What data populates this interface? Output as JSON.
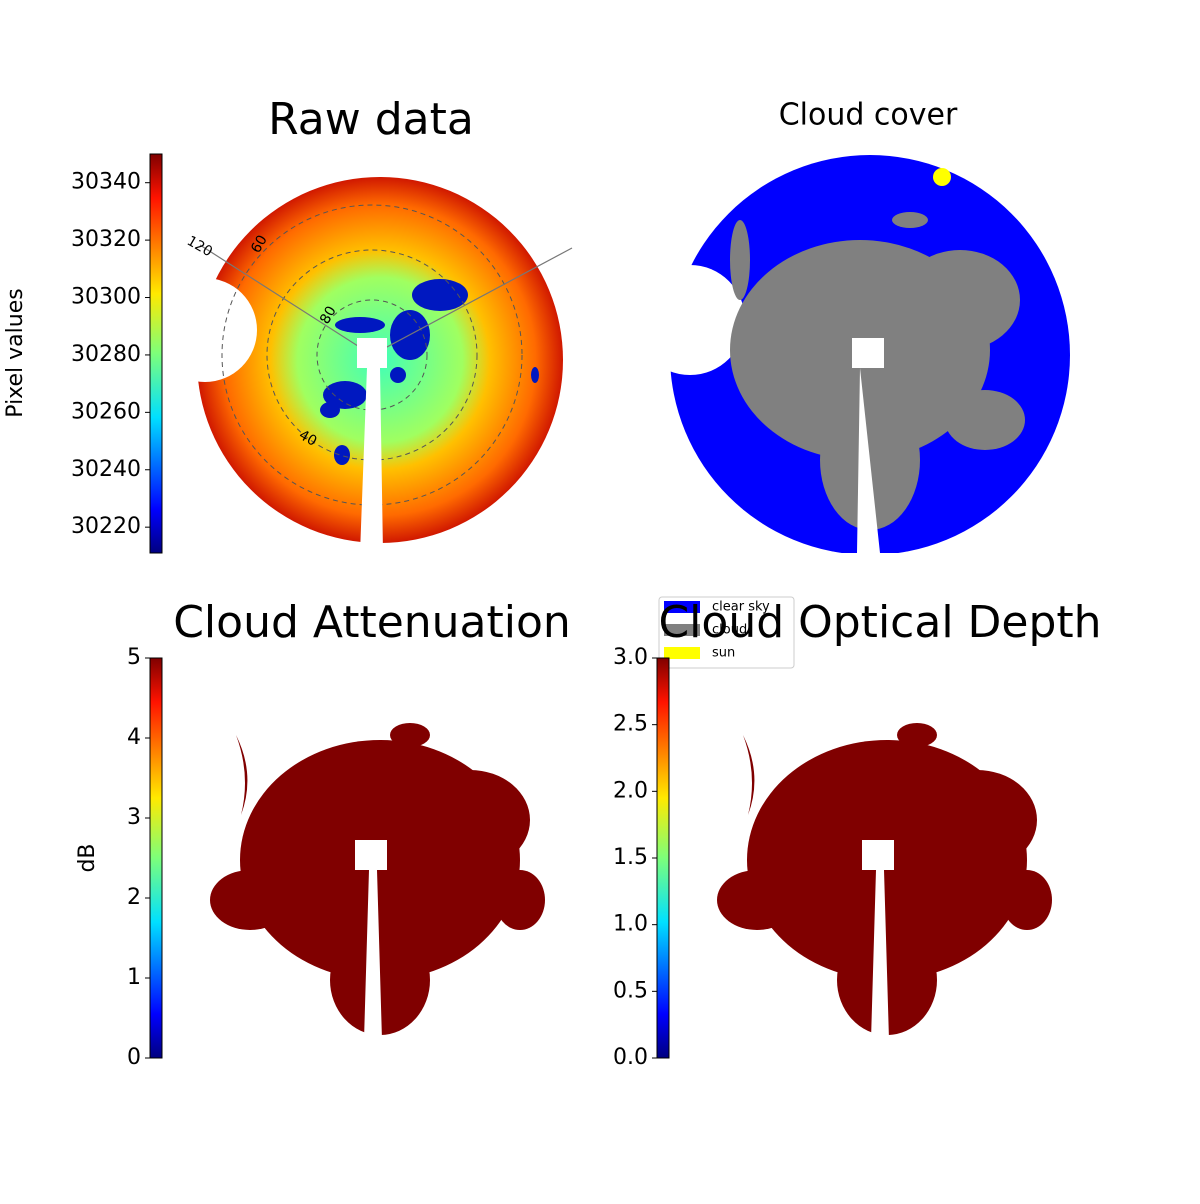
{
  "chart_data": [
    {
      "type": "image",
      "title": "Raw data",
      "colormap": "jet",
      "clim": [
        30211,
        30350
      ],
      "colorbar": {
        "label": "Pixel values",
        "ticks": [
          30220,
          30240,
          30260,
          30280,
          30300,
          30320,
          30340
        ]
      },
      "polar_labels": [
        "120",
        "60",
        "80",
        "40"
      ]
    },
    {
      "type": "image",
      "title": "Cloud cover",
      "series": [
        {
          "name": "clear sky",
          "color": "#0000ff"
        },
        {
          "name": "cloud",
          "color": "#808080"
        },
        {
          "name": "sun",
          "color": "#ffff00"
        }
      ]
    },
    {
      "type": "image",
      "title": "Cloud Attenuation",
      "colormap": "jet",
      "clim": [
        0,
        5
      ],
      "colorbar": {
        "label": "dB",
        "ticks": [
          0,
          1,
          2,
          3,
          4,
          5
        ]
      }
    },
    {
      "type": "image",
      "title": "Cloud Optical Depth",
      "colormap": "jet",
      "clim": [
        0,
        3
      ],
      "colorbar": {
        "ticks": [
          {
            "value": 0,
            "label": "0.0"
          },
          {
            "value": 0.5,
            "label": "0.5"
          },
          {
            "value": 1,
            "label": "1.0"
          },
          {
            "value": 1.5,
            "label": "1.5"
          },
          {
            "value": 2,
            "label": "2.0"
          },
          {
            "value": 2.5,
            "label": "2.5"
          },
          {
            "value": 3,
            "label": "3.0"
          }
        ]
      }
    }
  ]
}
